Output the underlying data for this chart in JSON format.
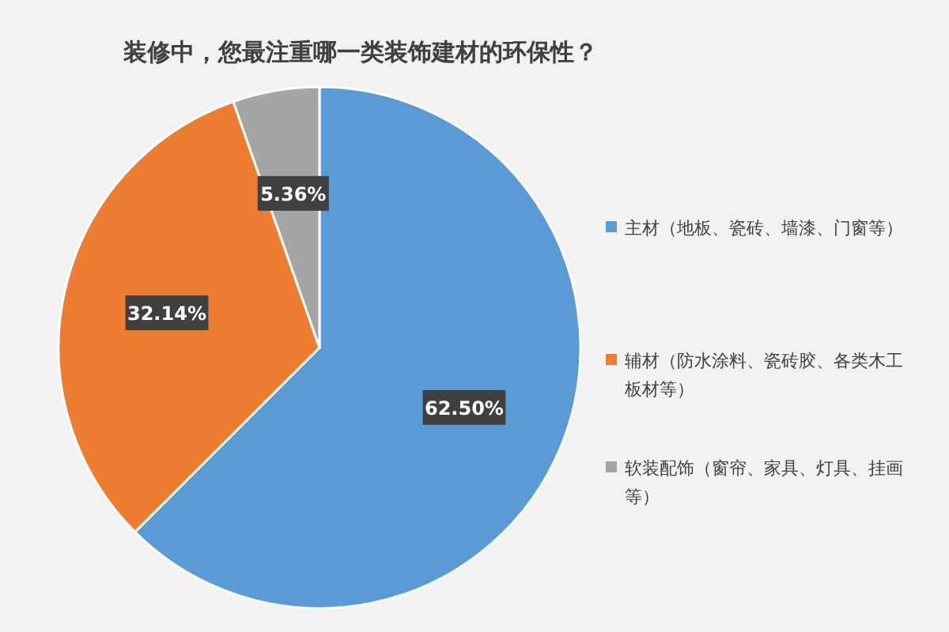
{
  "chart_data": {
    "type": "pie",
    "title": "装修中，您最注重哪一类装饰建材的环保性？",
    "categories": [
      "主材（地板、瓷砖、墙漆、门窗等）",
      "辅材（防水涂料、瓷砖胶、各类木工板材等）",
      "软装配饰（窗帘、家具、灯具、挂画等）"
    ],
    "values": [
      62.5,
      32.14,
      5.36
    ],
    "colors": [
      "#5b9bd5",
      "#ed7d31",
      "#a5a5a5"
    ],
    "value_labels": [
      "62.50%",
      "32.14%",
      "5.36%"
    ],
    "legend": "right"
  }
}
